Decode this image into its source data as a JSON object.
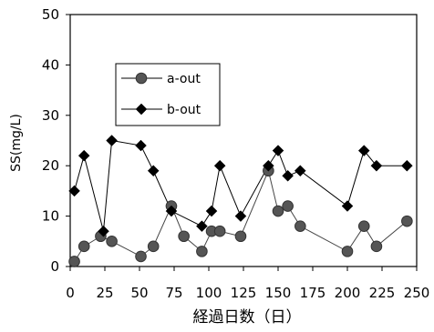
{
  "chart_data": {
    "type": "line",
    "xlabel": "経過日数（日）",
    "ylabel": "SS(mg/L)",
    "xlim": [
      0,
      250
    ],
    "ylim": [
      0,
      50
    ],
    "x_ticks": [
      0,
      25,
      50,
      75,
      100,
      125,
      150,
      175,
      200,
      225,
      250
    ],
    "y_ticks": [
      0,
      10,
      20,
      30,
      40,
      50
    ],
    "grid": false,
    "legend_position": "upper-left",
    "series": [
      {
        "name": "a-out",
        "marker": "circle",
        "color": "#555555",
        "points": [
          [
            3,
            1
          ],
          [
            10,
            4
          ],
          [
            22,
            6
          ],
          [
            30,
            5
          ],
          [
            51,
            2
          ],
          [
            60,
            4
          ],
          [
            73,
            12
          ],
          [
            82,
            6
          ],
          [
            95,
            3
          ],
          [
            102,
            7
          ],
          [
            108,
            7
          ],
          [
            123,
            6
          ],
          [
            143,
            19
          ],
          [
            150,
            11
          ],
          [
            157,
            12
          ],
          [
            166,
            8
          ],
          [
            200,
            3
          ],
          [
            212,
            8
          ],
          [
            221,
            4
          ],
          [
            243,
            9
          ]
        ]
      },
      {
        "name": "b-out",
        "marker": "diamond",
        "color": "#000000",
        "points": [
          [
            3,
            15
          ],
          [
            10,
            22
          ],
          [
            24,
            7
          ],
          [
            30,
            25
          ],
          [
            51,
            24
          ],
          [
            60,
            19
          ],
          [
            73,
            11
          ],
          [
            95,
            8
          ],
          [
            102,
            11
          ],
          [
            108,
            20
          ],
          [
            123,
            10
          ],
          [
            143,
            20
          ],
          [
            150,
            23
          ],
          [
            157,
            18
          ],
          [
            166,
            19
          ],
          [
            200,
            12
          ],
          [
            212,
            23
          ],
          [
            221,
            20
          ],
          [
            243,
            20
          ]
        ]
      }
    ]
  }
}
